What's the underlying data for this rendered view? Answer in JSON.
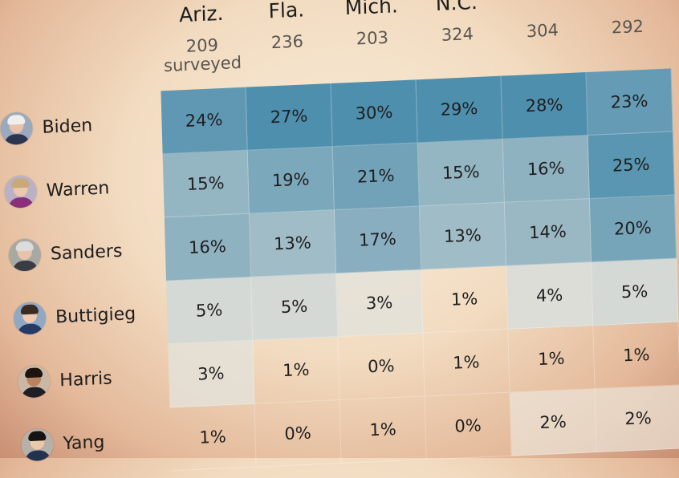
{
  "chart_data": {
    "type": "table",
    "columns": [
      {
        "state": "Ariz.",
        "count": "209",
        "count_note": "surveyed"
      },
      {
        "state": "Fla.",
        "count": "236"
      },
      {
        "state": "Mich.",
        "count": "203"
      },
      {
        "state": "N.C.",
        "count": "324"
      },
      {
        "state": "",
        "count": "304"
      },
      {
        "state": "",
        "count": "292"
      }
    ],
    "rows": [
      {
        "candidate": "Biden",
        "values": [
          24,
          27,
          30,
          29,
          28,
          23
        ],
        "labels": [
          "24%",
          "27%",
          "30%",
          "29%",
          "28%",
          "23%"
        ]
      },
      {
        "candidate": "Warren",
        "values": [
          15,
          19,
          21,
          15,
          16,
          25
        ],
        "labels": [
          "15%",
          "19%",
          "21%",
          "15%",
          "16%",
          "25%"
        ]
      },
      {
        "candidate": "Sanders",
        "values": [
          16,
          13,
          17,
          13,
          14,
          20
        ],
        "labels": [
          "16%",
          "13%",
          "17%",
          "13%",
          "14%",
          "20%"
        ]
      },
      {
        "candidate": "Buttigieg",
        "values": [
          5,
          5,
          3,
          1,
          4,
          5
        ],
        "labels": [
          "5%",
          "5%",
          "3%",
          "1%",
          "4%",
          "5%"
        ]
      },
      {
        "candidate": "Harris",
        "values": [
          3,
          1,
          0,
          1,
          1,
          1
        ],
        "labels": [
          "3%",
          "1%",
          "0%",
          "1%",
          "1%",
          "1%"
        ]
      },
      {
        "candidate": "Yang",
        "values": [
          1,
          0,
          1,
          0,
          2,
          2
        ],
        "labels": [
          "1%",
          "0%",
          "1%",
          "0%",
          "2%",
          "2%"
        ]
      }
    ],
    "color_scale": {
      "low": "#f7ecdf",
      "high": "#4f8fae"
    },
    "avatar_colors": {
      "Biden": {
        "skin": "#e8c2a8",
        "hair": "#eeeeee",
        "suit": "#2b3550",
        "bg": "#9aa9bd"
      },
      "Warren": {
        "skin": "#ecc8ae",
        "hair": "#c9a978",
        "suit": "#8a2f7a",
        "bg": "#b9b2c6"
      },
      "Sanders": {
        "skin": "#e8c3aa",
        "hair": "#dcdcdc",
        "suit": "#3a3c44",
        "bg": "#a9a9a4"
      },
      "Buttigieg": {
        "skin": "#efcab0",
        "hair": "#3b2b22",
        "suit": "#263a66",
        "bg": "#8fa8c4"
      },
      "Harris": {
        "skin": "#b8835e",
        "hair": "#1c1410",
        "suit": "#1e1e24",
        "bg": "#c9b8a5"
      },
      "Yang": {
        "skin": "#e9c9a8",
        "hair": "#141414",
        "suit": "#23324e",
        "bg": "#b6b0a8"
      }
    }
  }
}
